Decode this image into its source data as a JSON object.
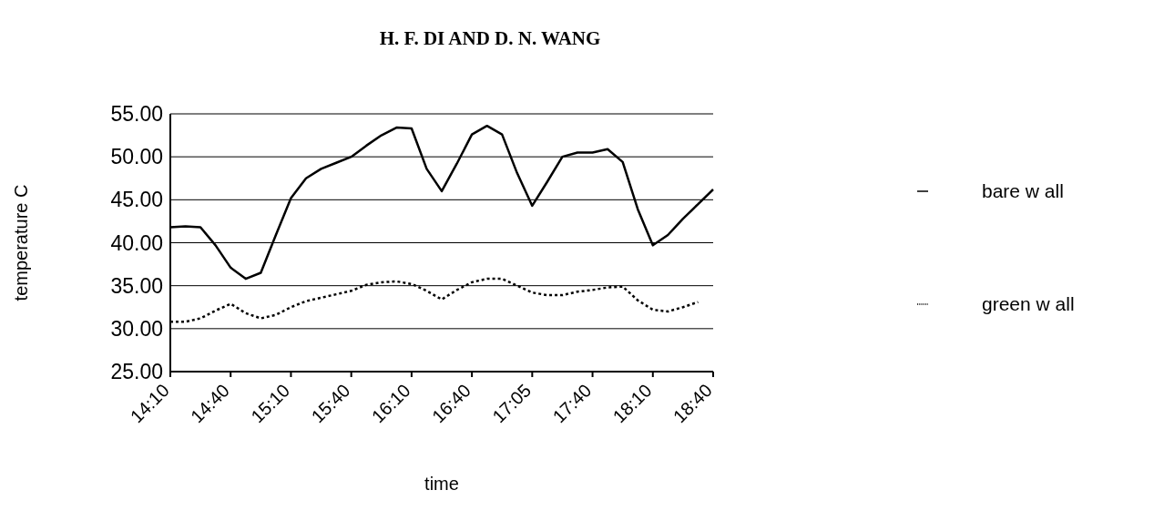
{
  "chart_data": {
    "type": "line",
    "title": "H. F. DI AND D. N. WANG",
    "xlabel": "time",
    "ylabel": "temperature C",
    "categories": [
      "14:10",
      null,
      null,
      null,
      "14:40",
      null,
      null,
      null,
      "15:10",
      null,
      null,
      null,
      "15:40",
      null,
      null,
      null,
      "16:10",
      null,
      null,
      null,
      "16:40",
      null,
      null,
      null,
      "17:05",
      null,
      null,
      null,
      "17:40",
      null,
      null,
      null,
      "18:10",
      null,
      null,
      null,
      "18:40"
    ],
    "series": [
      {
        "name": "green w all",
        "color": "#000000",
        "line_style": "dotted",
        "values": [
          30.8,
          30.8,
          31.2,
          32.1,
          32.9,
          31.8,
          31.2,
          31.6,
          32.5,
          33.2,
          33.6,
          34.0,
          34.4,
          35.1,
          35.4,
          35.5,
          35.2,
          34.4,
          33.4,
          34.5,
          35.4,
          35.8,
          35.8,
          35.0,
          34.2,
          33.9,
          33.9,
          34.3,
          34.5,
          34.8,
          34.9,
          33.3,
          32.2,
          32.0,
          32.5,
          33.1,
          null
        ]
      },
      {
        "name": "bare w all",
        "color": "#000000",
        "line_style": "solid",
        "values": [
          41.8,
          41.9,
          41.8,
          39.7,
          37.1,
          35.8,
          36.5,
          40.9,
          45.2,
          47.5,
          48.6,
          49.3,
          50.0,
          51.3,
          52.5,
          53.4,
          53.3,
          48.6,
          46.0,
          49.2,
          52.6,
          53.6,
          52.6,
          48.1,
          44.3,
          47.1,
          50.0,
          50.5,
          50.5,
          50.9,
          49.4,
          43.9,
          39.7,
          40.9,
          42.8,
          44.5,
          46.2
        ]
      }
    ],
    "ylim": [
      25,
      55
    ],
    "yticks": [
      {
        "value": 25,
        "label": "25.00"
      },
      {
        "value": 30,
        "label": "30.00"
      },
      {
        "value": 35,
        "label": "35.00"
      },
      {
        "value": 40,
        "label": "40.00"
      },
      {
        "value": 45,
        "label": "45.00"
      },
      {
        "value": 50,
        "label": "50.00"
      },
      {
        "value": 55,
        "label": "55.00"
      }
    ],
    "grid": "y",
    "legend": "right",
    "marker": "none"
  }
}
